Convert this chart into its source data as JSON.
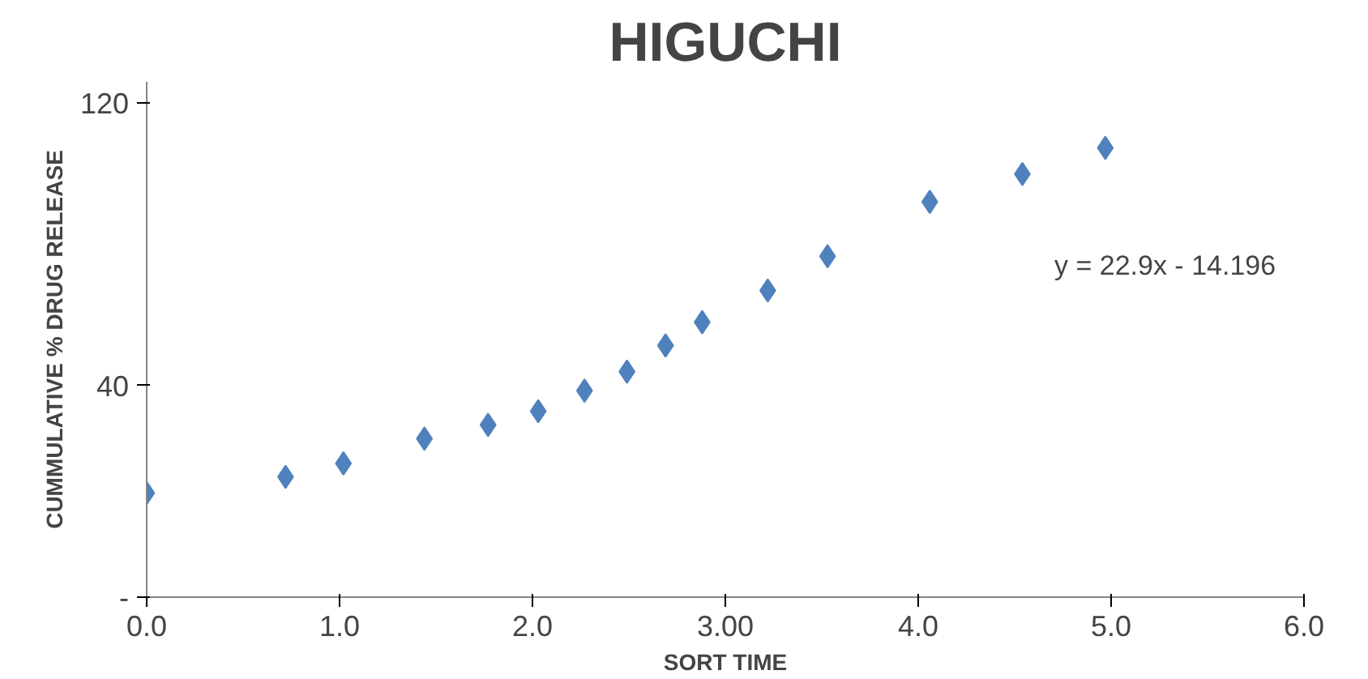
{
  "chart_data": {
    "type": "scatter",
    "title": "HIGUCHI",
    "xlabel": "SORT TIME",
    "ylabel": "CUMMULATIVE % DRUG RELEASE",
    "x": [
      0,
      0.72,
      1.02,
      1.44,
      1.77,
      2.03,
      2.27,
      2.49,
      2.69,
      2.88,
      3.22,
      3.53,
      4.06,
      4.54,
      4.97
    ],
    "series": [
      {
        "color": "#4f81bd",
        "values": [
          9.5,
          14.1,
          17.9,
          24.9,
          28.8,
          32.7,
          38.5,
          43.9,
          51.3,
          57.9,
          66.9,
          76.6,
          92.0,
          99.9,
          107.3
        ]
      }
    ],
    "xlim": [
      0,
      6
    ],
    "xticks": [
      {
        "value": 0,
        "label": "0.0"
      },
      {
        "value": 1,
        "label": "1.0"
      },
      {
        "value": 2,
        "label": "2.0"
      },
      {
        "value": 3,
        "label": "3.00"
      },
      {
        "value": 4,
        "label": "4.0"
      },
      {
        "value": 5,
        "label": "5.0"
      },
      {
        "value": 6,
        "label": "6.0"
      }
    ],
    "ylim": [
      -20,
      126
    ],
    "yticks": [
      {
        "value": -20,
        "label": "-"
      },
      40,
      120
    ],
    "annotations": [
      "y = 22.9x - 14.196"
    ],
    "grid": false,
    "marker": "diamond"
  }
}
